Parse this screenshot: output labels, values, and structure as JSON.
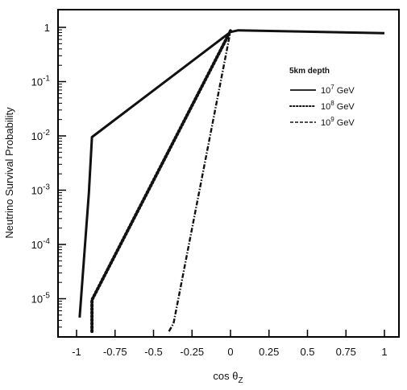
{
  "chart_data": {
    "type": "line",
    "title": "",
    "xlabel": "cos θ_Z",
    "ylabel": "Neutrino Survival Probability",
    "xlim": [
      -1.1,
      1.1
    ],
    "ylim": [
      2.5e-06,
      1.6
    ],
    "yscale": "log",
    "grid": false,
    "legend_position": "top-right",
    "legend_title": "5km depth",
    "x_ticks": [
      -1,
      -0.75,
      -0.5,
      -0.25,
      0,
      0.25,
      0.5,
      0.75,
      1
    ],
    "x_tick_labels": [
      "-1",
      "-0.75",
      "-0.5",
      "-0.25",
      "0",
      "0.25",
      "0.5",
      "0.75",
      "1"
    ],
    "y_ticks": [
      1e-05,
      0.0001,
      0.001,
      0.01,
      0.1,
      1
    ],
    "y_tick_labels": [
      {
        "base": "10",
        "exp": "-5"
      },
      {
        "base": "10",
        "exp": "-4"
      },
      {
        "base": "10",
        "exp": "-3"
      },
      {
        "base": "10",
        "exp": "-2"
      },
      {
        "base": "10",
        "exp": "-1"
      },
      {
        "base": "1",
        "exp": ""
      }
    ],
    "series": [
      {
        "name": "10^7 GeV",
        "label_base": "10",
        "label_exp": "7",
        "label_unit": " GeV",
        "style": "solid",
        "points": [
          [
            -0.98,
            4.5e-06
          ],
          [
            -0.92,
            0.0009
          ],
          [
            -0.9,
            0.0095
          ],
          [
            0,
            0.82
          ],
          [
            0.05,
            0.88
          ],
          [
            1.0,
            0.78
          ]
        ]
      },
      {
        "name": "10^8 GeV",
        "label_base": "10",
        "label_exp": "8",
        "label_unit": " GeV",
        "style": "dotted",
        "points": [
          [
            -0.9,
            2.5e-06
          ],
          [
            -0.9,
            9.5e-06
          ],
          [
            0.0,
            0.86
          ]
        ]
      },
      {
        "name": "10^9 GeV",
        "label_base": "10",
        "label_exp": "9",
        "label_unit": " GeV",
        "style": "dash-dot",
        "points": [
          [
            -0.4,
            2.5e-06
          ],
          [
            -0.37,
            3.5e-06
          ],
          [
            0.0,
            0.85
          ]
        ]
      }
    ]
  }
}
